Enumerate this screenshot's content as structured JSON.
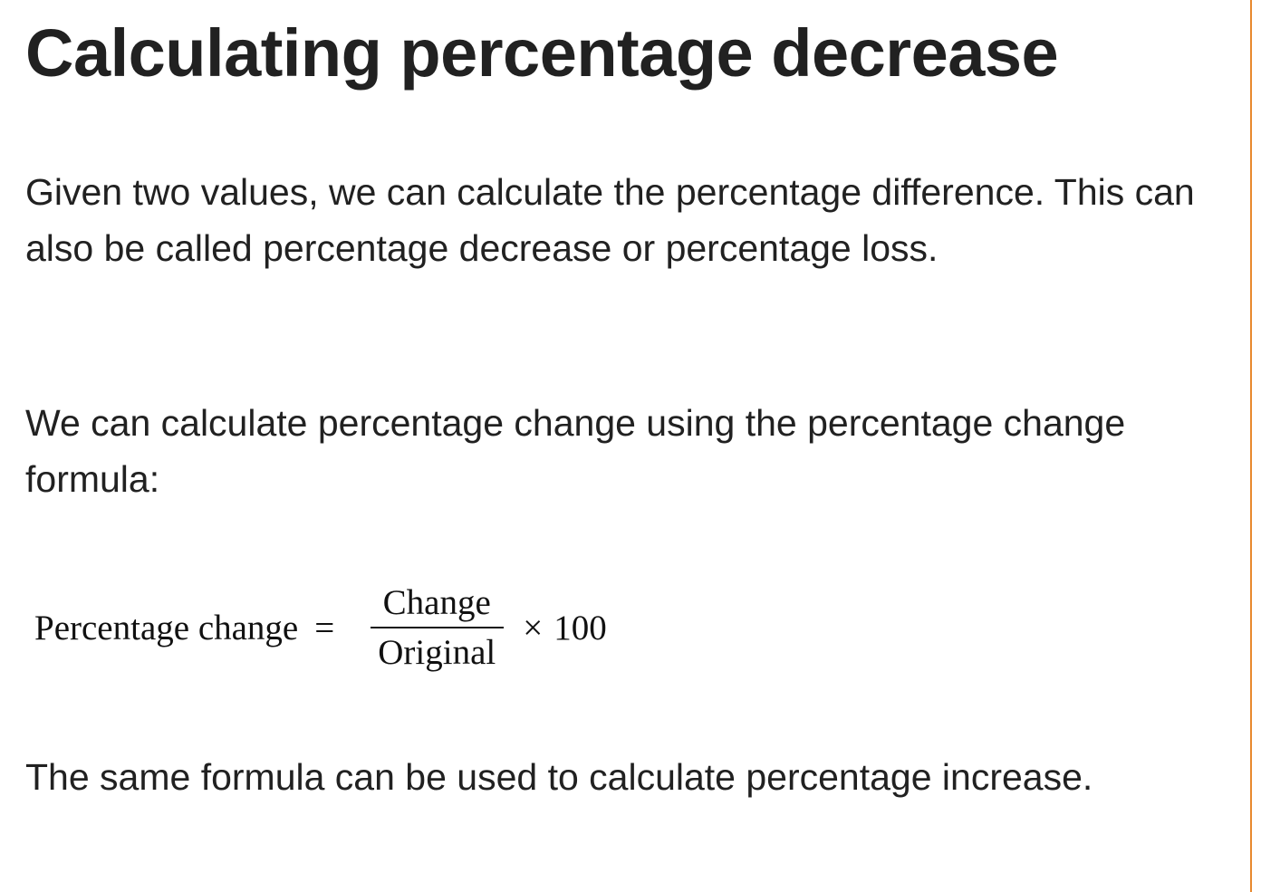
{
  "heading": "Calculating percentage decrease",
  "paragraphs": [
    "Given two values, we can calculate the percentage difference. This can also be called percentage decrease or percentage loss.",
    "We can calculate percentage change using the percentage change formula:",
    "The same formula can be used to calculate percentage increase."
  ],
  "formula": {
    "lhs": "Percentage change",
    "equals": "=",
    "numerator": "Change",
    "denominator": "Original",
    "times": "×",
    "factor": 100
  }
}
